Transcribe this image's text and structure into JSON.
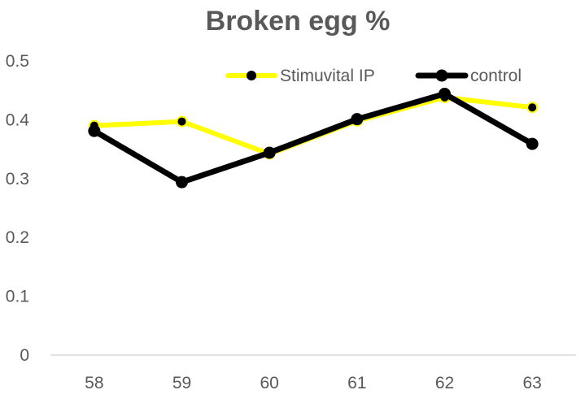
{
  "chart_data": {
    "type": "line",
    "title": "Broken egg %",
    "xlabel": "",
    "ylabel": "",
    "categories": [
      "58",
      "59",
      "60",
      "61",
      "62",
      "63"
    ],
    "ylim": [
      0,
      0.5
    ],
    "yticks": [
      "0",
      "0.1",
      "0.2",
      "0.3",
      "0.4",
      "0.5"
    ],
    "grid": false,
    "legend_position": "top-right",
    "series": [
      {
        "name": "Stimuvital IP",
        "color": "#ffff00",
        "values": [
          0.39,
          0.397,
          0.342,
          0.398,
          0.438,
          0.421
        ]
      },
      {
        "name": "control",
        "color": "#000000",
        "values": [
          0.381,
          0.294,
          0.344,
          0.401,
          0.444,
          0.359
        ]
      }
    ]
  }
}
